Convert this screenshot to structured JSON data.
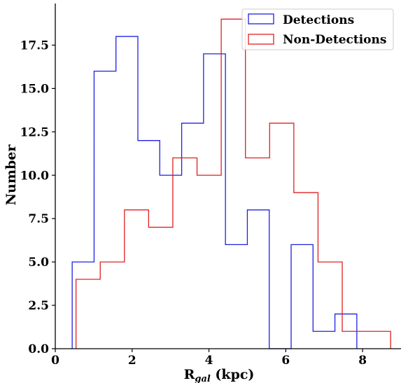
{
  "chart_data": {
    "type": "histogram",
    "xlabel_main": "R",
    "xlabel_sub": "gal",
    "xlabel_unit": " (kpc)",
    "ylabel": "Number",
    "xlim": [
      0,
      9.0
    ],
    "ylim": [
      0,
      19.9
    ],
    "xticks": [
      0,
      2,
      4,
      6,
      8
    ],
    "xtick_labels": [
      "0",
      "2",
      "4",
      "6",
      "8"
    ],
    "yticks": [
      0,
      2.5,
      5,
      7.5,
      10,
      12.5,
      15,
      17.5
    ],
    "ytick_labels": [
      "0.0",
      "2.5",
      "5.0",
      "7.5",
      "10.0",
      "12.5",
      "15.0",
      "17.5"
    ],
    "legend_position": "top-right",
    "series": [
      {
        "name": "Detections",
        "color": "#2020e0",
        "bin_edges": [
          0.44,
          1.01,
          1.58,
          2.15,
          2.72,
          3.29,
          3.86,
          4.43,
          5.0,
          5.57,
          6.14,
          6.71,
          7.28,
          7.85
        ],
        "counts": [
          5,
          16,
          18,
          12,
          10,
          13,
          17,
          6,
          8,
          0,
          6,
          1,
          2
        ]
      },
      {
        "name": "Non-Detections",
        "color": "#e02020",
        "bin_edges": [
          0.54,
          1.17,
          1.8,
          2.43,
          3.06,
          3.69,
          4.32,
          4.95,
          5.58,
          6.21,
          6.84,
          7.47,
          8.1,
          8.73
        ],
        "counts": [
          4,
          5,
          8,
          7,
          11,
          10,
          19,
          11,
          13,
          9,
          5,
          1,
          1
        ]
      }
    ]
  }
}
